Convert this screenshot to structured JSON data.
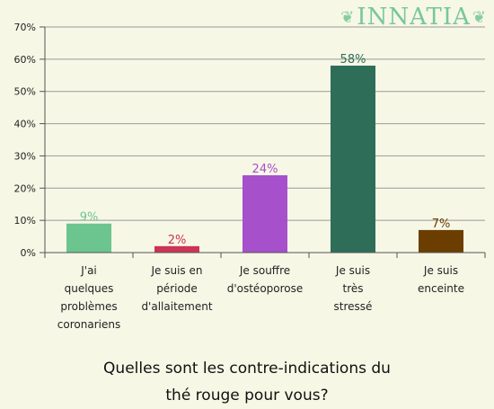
{
  "logo": {
    "text": "INNATIA",
    "leaf_icon": "leaf-icon"
  },
  "chart_data": {
    "type": "bar",
    "title": "",
    "caption_lines": [
      "Quelles sont les contre-indications du",
      "thé rouge pour vous?"
    ],
    "xlabel": "",
    "ylabel": "",
    "ylim": [
      0,
      70
    ],
    "yticks": [
      0,
      10,
      20,
      30,
      40,
      50,
      60,
      70
    ],
    "ytick_labels": [
      "0%",
      "10%",
      "20%",
      "30%",
      "40%",
      "50%",
      "60%",
      "70%"
    ],
    "grid": true,
    "categories": [
      [
        "J'ai",
        "quelques",
        "problèmes",
        "coronariens"
      ],
      [
        "Je suis en",
        "période",
        "d'allaitement"
      ],
      [
        "Je souffre",
        "d'ostéoporose"
      ],
      [
        "Je suis",
        "très",
        "stressé"
      ],
      [
        "Je suis",
        "enceinte"
      ]
    ],
    "values": [
      9,
      2,
      24,
      58,
      7
    ],
    "value_labels": [
      "9%",
      "2%",
      "24%",
      "58%",
      "7%"
    ],
    "colors": [
      "#6cc48e",
      "#cc3355",
      "#a650cc",
      "#2e6e58",
      "#6b3e00"
    ]
  }
}
